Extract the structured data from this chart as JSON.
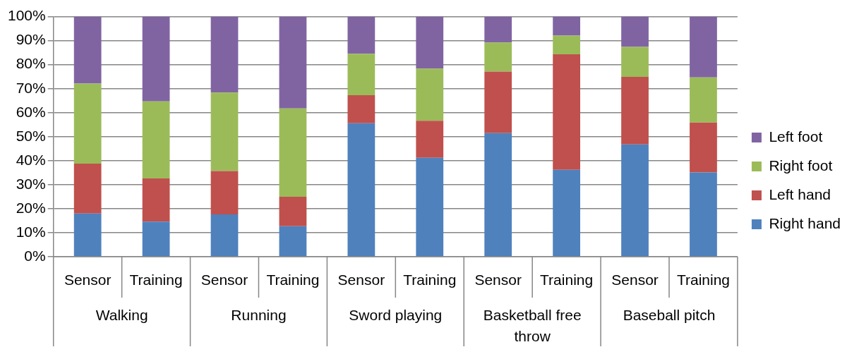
{
  "chart_data": {
    "type": "bar",
    "stacked": true,
    "categories": [
      "Sensor",
      "Training",
      "Sensor",
      "Training",
      "Sensor",
      "Training",
      "Sensor",
      "Training",
      "Sensor",
      "Training"
    ],
    "annotations": [
      "Walking",
      "Running",
      "Sword playing",
      "Basketball free throw",
      "Baseball pitch"
    ],
    "series": [
      {
        "name": "Right hand",
        "color": "#4f81bd",
        "values": [
          18.0,
          14.6,
          17.6,
          12.7,
          55.6,
          41.2,
          51.5,
          36.2,
          46.8,
          35.1
        ]
      },
      {
        "name": "Left hand",
        "color": "#c0504d",
        "values": [
          20.8,
          18.0,
          18.1,
          12.3,
          11.7,
          15.4,
          25.6,
          48.1,
          28.1,
          20.8
        ]
      },
      {
        "name": "Right foot",
        "color": "#9bbb59",
        "values": [
          33.3,
          32.1,
          32.7,
          36.8,
          17.2,
          21.8,
          12.1,
          7.8,
          12.5,
          18.8
        ]
      },
      {
        "name": "Left foot",
        "color": "#8064a2",
        "values": [
          27.9,
          35.3,
          31.6,
          38.2,
          15.5,
          21.6,
          10.8,
          7.9,
          12.6,
          25.3
        ]
      }
    ],
    "ylim": [
      0,
      100
    ],
    "yticks": [
      {
        "value": 0,
        "label": "0%"
      },
      {
        "value": 10,
        "label": "10%"
      },
      {
        "value": 20,
        "label": "20%"
      },
      {
        "value": 30,
        "label": "30%"
      },
      {
        "value": 40,
        "label": "40%"
      },
      {
        "value": 50,
        "label": "50%"
      },
      {
        "value": 60,
        "label": "60%"
      },
      {
        "value": 70,
        "label": "70%"
      },
      {
        "value": 80,
        "label": "80%"
      },
      {
        "value": 90,
        "label": "90%"
      },
      {
        "value": 100,
        "label": "100%"
      }
    ],
    "grid": "y",
    "legend": "right"
  }
}
